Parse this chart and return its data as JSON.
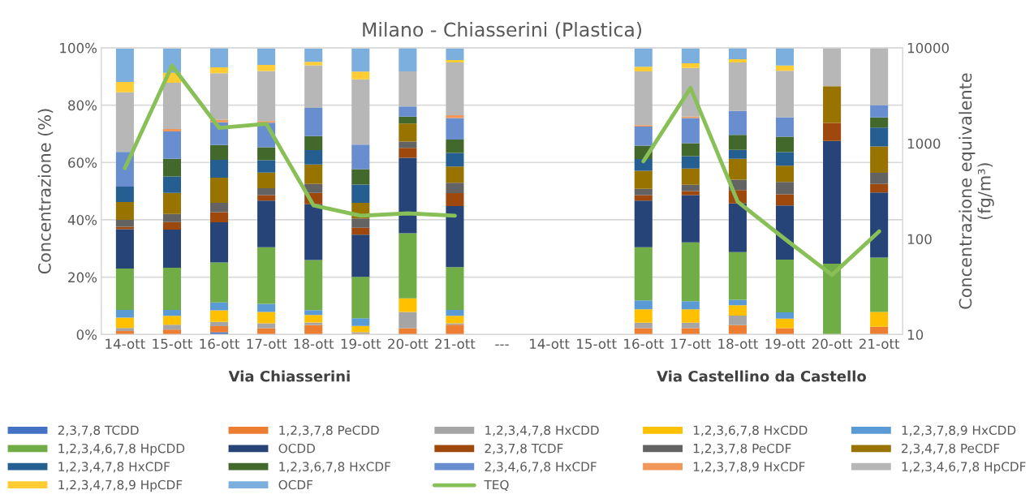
{
  "chart_data": {
    "type": "bar",
    "title": "Milano - Chiasserini (Plastica)",
    "ylabel": "Concentrazione (%)",
    "y2label": "Concentrazione equivalente\n(fg/m³)",
    "categories": [
      "14-ott",
      "15-ott",
      "16-ott",
      "17-ott",
      "18-ott",
      "19-ott",
      "20-ott",
      "21-ott",
      "---",
      "14-ott",
      "15-ott",
      "16-ott",
      "17-ott",
      "18-ott",
      "19-ott",
      "20-ott",
      "21-ott"
    ],
    "stacked": true,
    "grid": "y",
    "legend": "bottom",
    "log": "y2",
    "ylim": [
      0,
      100
    ],
    "yticks": [
      {
        "value": 0,
        "label": "0%"
      },
      {
        "value": 20,
        "label": "20%"
      },
      {
        "value": 40,
        "label": "40%"
      },
      {
        "value": 60,
        "label": "60%"
      },
      {
        "value": 80,
        "label": "80%"
      },
      {
        "value": 100,
        "label": "100%"
      }
    ],
    "y2lim": [
      10,
      10000
    ],
    "y2ticks": [
      10,
      100,
      1000,
      10000
    ],
    "annotations": [
      "Via Chiasserini",
      "Via Castellino da Castello"
    ],
    "series": [
      {
        "name": "2,3,7,8 TCDD",
        "color": "#4472c4",
        "values": [
          0,
          0,
          0.8,
          0,
          0,
          0,
          0,
          0,
          null,
          null,
          null,
          0,
          0,
          0,
          0,
          0,
          0
        ]
      },
      {
        "name": "1,2,3,7,8 PeCDD",
        "color": "#ed7d31",
        "values": [
          1.2,
          1.7,
          2.1,
          2.2,
          3.3,
          0.3,
          2.2,
          3.4,
          null,
          null,
          null,
          2.2,
          2.2,
          3.3,
          2.2,
          0,
          2.7
        ]
      },
      {
        "name": "1,2,3,4,7,8 HxCDD",
        "color": "#a5a5a5",
        "values": [
          1.1,
          1.7,
          1.5,
          1.7,
          0.9,
          0.5,
          5.7,
          0.5,
          null,
          null,
          null,
          1.9,
          1.9,
          3.3,
          0,
          0,
          0
        ]
      },
      {
        "name": "1,2,3,6,7,8 HxCDD",
        "color": "#ffc000",
        "values": [
          3.6,
          3.1,
          4.0,
          4.0,
          2.6,
          2.2,
          4.7,
          2.6,
          null,
          null,
          null,
          4.7,
          4.7,
          3.6,
          3.3,
          0,
          5.2
        ]
      },
      {
        "name": "1,2,3,7,8,9 HxCDD",
        "color": "#5b9bd5",
        "values": [
          2.7,
          2.1,
          2.8,
          2.8,
          1.7,
          2.7,
          0,
          2.1,
          null,
          null,
          null,
          3.1,
          2.8,
          1.9,
          2.2,
          0,
          0
        ]
      },
      {
        "name": "1,2,3,4,6,7,8 HpCDD",
        "color": "#70ad47",
        "values": [
          14.4,
          14.7,
          13.9,
          19.7,
          17.5,
          14.4,
          22.7,
          14.9,
          null,
          null,
          null,
          18.5,
          20.5,
          16.6,
          18.4,
          24.7,
          18.9
        ]
      },
      {
        "name": "OCDD",
        "color": "#264478",
        "values": [
          13.7,
          13.3,
          14.0,
          16.3,
          19.4,
          14.7,
          26.3,
          21.3,
          null,
          null,
          null,
          16.3,
          16.5,
          17.0,
          18.9,
          42.8,
          22.7
        ]
      },
      {
        "name": "2,3,7,8 TCDF",
        "color": "#9e480e",
        "values": [
          0.9,
          2.6,
          3.6,
          1.9,
          4.0,
          2.4,
          3.5,
          4.5,
          null,
          null,
          null,
          1.9,
          1.4,
          4.7,
          3.9,
          6.3,
          3.0
        ]
      },
      {
        "name": "1,2,3,7,8 PeCDF",
        "color": "#636363",
        "values": [
          2.4,
          2.8,
          3.2,
          2.4,
          3.1,
          3.3,
          2.2,
          3.6,
          null,
          null,
          null,
          2.2,
          2.2,
          3.6,
          4.3,
          0,
          3.9
        ]
      },
      {
        "name": "2,3,4,7,8 PeCDF",
        "color": "#997300",
        "values": [
          6.2,
          7.4,
          8.8,
          5.5,
          6.8,
          5.4,
          6.3,
          5.7,
          null,
          null,
          null,
          6.3,
          5.7,
          7.3,
          5.7,
          12.8,
          9.2
        ]
      },
      {
        "name": "1,2,3,4,7,8 HxCDF",
        "color": "#255e91",
        "values": [
          5.4,
          5.7,
          6.2,
          4.3,
          5.0,
          6.4,
          0,
          4.7,
          null,
          null,
          null,
          4.1,
          4.3,
          3.1,
          4.7,
          0,
          6.6
        ]
      },
      {
        "name": "1,2,3,6,7,8 HxCDF",
        "color": "#43682b",
        "values": [
          0,
          6.2,
          5.2,
          4.5,
          4.9,
          5.4,
          2.4,
          4.7,
          null,
          null,
          null,
          4.7,
          4.5,
          5.2,
          5.4,
          0,
          3.5
        ]
      },
      {
        "name": "2,3,4,6,7,8 HxCDF",
        "color": "#698ed0",
        "values": [
          12.1,
          9.5,
          7.9,
          8.6,
          9.8,
          8.5,
          3.5,
          7.5,
          null,
          null,
          null,
          6.6,
          8.8,
          8.4,
          6.8,
          0,
          4.3
        ]
      },
      {
        "name": "1,2,3,7,8,9 HxCDF",
        "color": "#f1975a",
        "values": [
          0,
          0.9,
          0.9,
          0.5,
          0,
          0,
          0,
          1.0,
          null,
          null,
          null,
          0.5,
          0.5,
          0,
          0,
          0,
          0
        ]
      },
      {
        "name": "1,2,3,4,6,7,8 HpCDF",
        "color": "#b7b7b7",
        "values": [
          20.8,
          16.1,
          16.2,
          17.5,
          14.9,
          22.8,
          12.3,
          18.4,
          null,
          null,
          null,
          18.8,
          17.0,
          16.9,
          16.2,
          13.4,
          20.0
        ]
      },
      {
        "name": "1,2,3,4,7,8,9 HpCDF",
        "color": "#ffcd33",
        "values": [
          3.6,
          3.5,
          2.1,
          2.1,
          1.2,
          2.7,
          0,
          0.8,
          null,
          null,
          null,
          1.6,
          1.6,
          1.1,
          1.8,
          0,
          0
        ]
      },
      {
        "name": "OCDF",
        "color": "#7cafdd",
        "values": [
          11.6,
          8.5,
          6.8,
          5.8,
          4.6,
          8.1,
          8.2,
          4.1,
          null,
          null,
          null,
          6.4,
          5.2,
          4.0,
          6.2,
          0,
          0
        ]
      },
      {
        "name": "TEQ",
        "type": "line",
        "axis": "y2",
        "color": "#88c057",
        "values": [
          550,
          6500,
          1450,
          1600,
          225,
          175,
          185,
          175,
          null,
          null,
          null,
          650,
          3800,
          245,
          100,
          42,
          120
        ]
      }
    ]
  }
}
